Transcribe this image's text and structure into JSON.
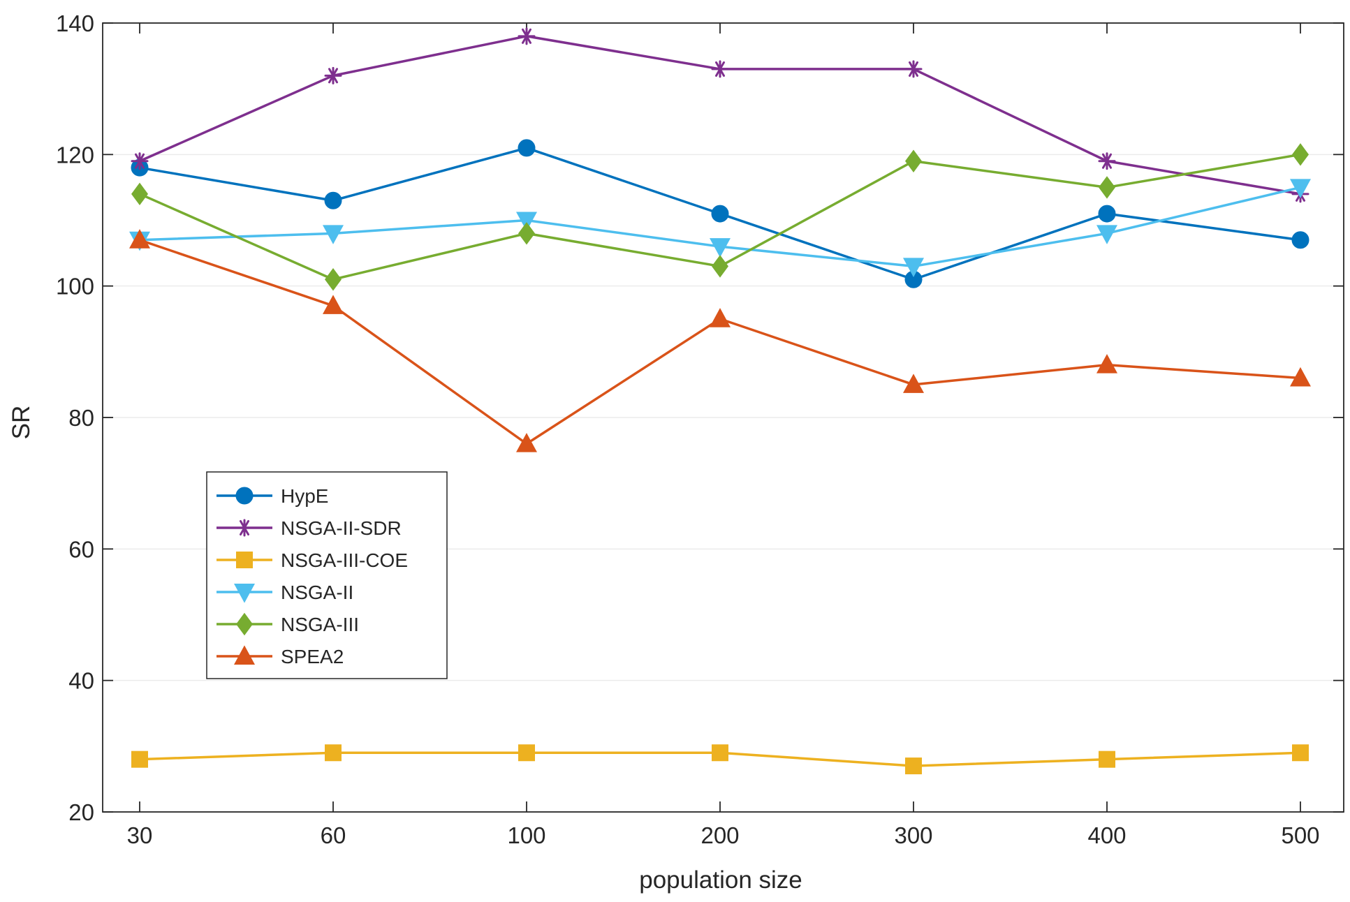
{
  "chart_data": {
    "type": "line",
    "title": "",
    "xlabel": "population size",
    "ylabel": "SR",
    "categories": [
      "30",
      "60",
      "100",
      "200",
      "300",
      "400",
      "500"
    ],
    "ylim": [
      20,
      140
    ],
    "yticks": [
      20,
      40,
      60,
      80,
      100,
      120,
      140
    ],
    "grid": true,
    "legend_position": "left-center",
    "series": [
      {
        "name": "HypE",
        "color": "#0072BD",
        "marker": "circle",
        "values": [
          118,
          113,
          121,
          111,
          101,
          111,
          107
        ]
      },
      {
        "name": "NSGA-II-SDR",
        "color": "#7E2F8E",
        "marker": "asterisk",
        "values": [
          119,
          132,
          138,
          133,
          133,
          119,
          114
        ]
      },
      {
        "name": "NSGA-III-COE",
        "color": "#EDB120",
        "marker": "square",
        "values": [
          28,
          29,
          29,
          29,
          27,
          28,
          29
        ]
      },
      {
        "name": "NSGA-II",
        "color": "#4DBEEE",
        "marker": "triangle-down",
        "values": [
          107,
          108,
          110,
          106,
          103,
          108,
          115
        ]
      },
      {
        "name": "NSGA-III",
        "color": "#77AC30",
        "marker": "diamond",
        "values": [
          114,
          101,
          108,
          103,
          119,
          115,
          120
        ]
      },
      {
        "name": "SPEA2",
        "color": "#D95319",
        "marker": "triangle-up",
        "values": [
          107,
          97,
          76,
          95,
          85,
          88,
          86
        ]
      }
    ]
  }
}
